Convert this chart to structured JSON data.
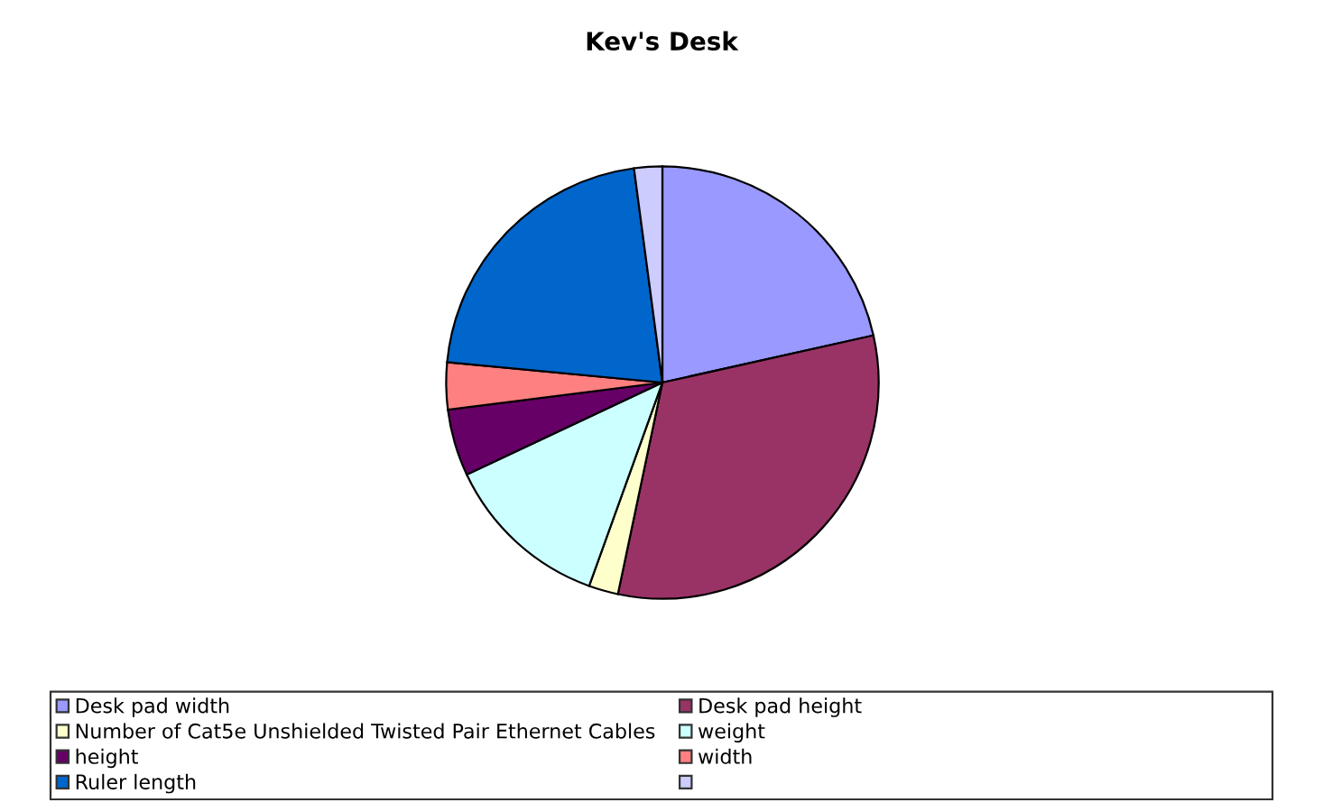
{
  "chart_data": {
    "type": "pie",
    "title": "Kev's Desk",
    "categories": [
      "Desk pad width",
      "Desk pad height",
      "Number of Cat5e Unshielded Twisted Pair Ethernet Cables",
      "weight",
      "height",
      "width",
      "Ruler length",
      null
    ],
    "values": [
      21.5,
      31.8,
      2.2,
      12.5,
      5.0,
      3.5,
      21.4,
      2.1
    ],
    "colors": [
      "#9999ff",
      "#993366",
      "#ffffcc",
      "#ccffff",
      "#660066",
      "#ff8080",
      "#0066cc",
      "#ccccff"
    ],
    "legend": "bottom"
  }
}
